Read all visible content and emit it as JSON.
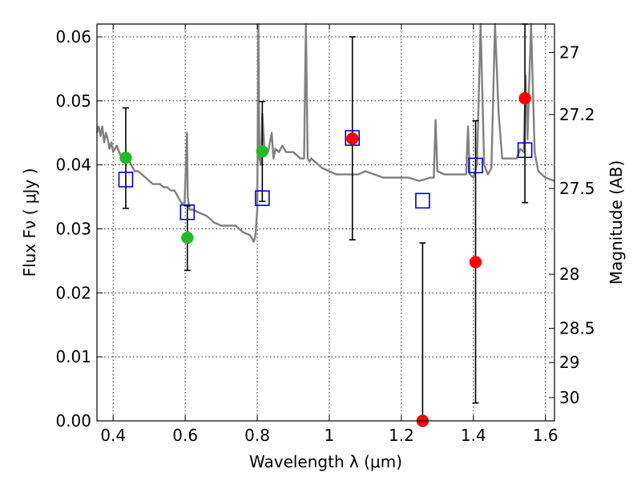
{
  "chart_data": {
    "type": "scatter",
    "title": "",
    "xlabel": "Wavelength  λ (μm)",
    "ylabel": "Flux  Fν  ( μJy )",
    "ylabel_right": "Magnitude (AB)",
    "xlim": [
      0.355,
      1.625
    ],
    "ylim": [
      0.0,
      0.062
    ],
    "grid": true,
    "x_ticks": [
      {
        "value": 0.4,
        "label": "0.4"
      },
      {
        "value": 0.6,
        "label": "0.6"
      },
      {
        "value": 0.8,
        "label": "0.8"
      },
      {
        "value": 1.0,
        "label": "1"
      },
      {
        "value": 1.2,
        "label": "1.2"
      },
      {
        "value": 1.4,
        "label": "1.4"
      },
      {
        "value": 1.6,
        "label": "1.6"
      }
    ],
    "y_ticks": [
      {
        "value": 0.0,
        "label": "0.00"
      },
      {
        "value": 0.01,
        "label": "0.01"
      },
      {
        "value": 0.02,
        "label": "0.02"
      },
      {
        "value": 0.03,
        "label": "0.03"
      },
      {
        "value": 0.04,
        "label": "0.04"
      },
      {
        "value": 0.05,
        "label": "0.05"
      },
      {
        "value": 0.06,
        "label": "0.06"
      }
    ],
    "right_ticks": [
      {
        "label": "27",
        "mag": 27.0
      },
      {
        "label": "27.2",
        "mag": 27.2
      },
      {
        "label": "27.5",
        "mag": 27.5
      },
      {
        "label": "28",
        "mag": 28.0
      },
      {
        "label": "28.5",
        "mag": 28.5
      },
      {
        "label": "29",
        "mag": 29.0
      },
      {
        "label": "30",
        "mag": 30.0
      }
    ],
    "template_spectrum": {
      "color": "#808080",
      "x": [
        0.355,
        0.36,
        0.365,
        0.37,
        0.375,
        0.38,
        0.385,
        0.39,
        0.395,
        0.4,
        0.41,
        0.42,
        0.43,
        0.44,
        0.45,
        0.46,
        0.47,
        0.48,
        0.49,
        0.5,
        0.51,
        0.52,
        0.53,
        0.54,
        0.55,
        0.56,
        0.57,
        0.58,
        0.59,
        0.598,
        0.602,
        0.605,
        0.607,
        0.612,
        0.62,
        0.64,
        0.66,
        0.68,
        0.7,
        0.72,
        0.74,
        0.76,
        0.78,
        0.79,
        0.795,
        0.8,
        0.803,
        0.806,
        0.81,
        0.814,
        0.82,
        0.83,
        0.84,
        0.845,
        0.85,
        0.86,
        0.87,
        0.88,
        0.9,
        0.92,
        0.93,
        0.935,
        0.94,
        0.945,
        0.95,
        0.98,
        1.0,
        1.02,
        1.05,
        1.08,
        1.1,
        1.15,
        1.2,
        1.22,
        1.25,
        1.28,
        1.29,
        1.295,
        1.3,
        1.32,
        1.35,
        1.37,
        1.38,
        1.385,
        1.39,
        1.4,
        1.41,
        1.42,
        1.43,
        1.44,
        1.45,
        1.46,
        1.47,
        1.48,
        1.5,
        1.52,
        1.53,
        1.54,
        1.545,
        1.55,
        1.56,
        1.57,
        1.58,
        1.6,
        1.625
      ],
      "y": [
        0.045,
        0.046,
        0.0445,
        0.046,
        0.0435,
        0.045,
        0.044,
        0.0425,
        0.0435,
        0.042,
        0.043,
        0.0415,
        0.0415,
        0.0415,
        0.04,
        0.039,
        0.039,
        0.0385,
        0.038,
        0.0375,
        0.037,
        0.037,
        0.037,
        0.0365,
        0.0365,
        0.036,
        0.036,
        0.035,
        0.034,
        0.034,
        0.04,
        0.045,
        0.035,
        0.033,
        0.033,
        0.0325,
        0.032,
        0.031,
        0.0305,
        0.0305,
        0.0305,
        0.0295,
        0.029,
        0.028,
        0.029,
        0.033,
        0.062,
        0.041,
        0.04,
        0.048,
        0.042,
        0.042,
        0.045,
        0.041,
        0.0425,
        0.042,
        0.043,
        0.042,
        0.042,
        0.041,
        0.041,
        0.062,
        0.041,
        0.0405,
        0.041,
        0.0395,
        0.039,
        0.0385,
        0.0385,
        0.0385,
        0.039,
        0.038,
        0.038,
        0.038,
        0.0375,
        0.038,
        0.038,
        0.047,
        0.039,
        0.0385,
        0.0385,
        0.0385,
        0.0385,
        0.046,
        0.0385,
        0.038,
        0.04,
        0.062,
        0.04,
        0.0385,
        0.0395,
        0.062,
        0.048,
        0.041,
        0.041,
        0.041,
        0.0425,
        0.042,
        0.054,
        0.044,
        0.062,
        0.042,
        0.039,
        0.038,
        0.0375
      ]
    },
    "series": [
      {
        "name": "",
        "kind": "model_photometry",
        "marker": "open-square",
        "color": "#0000cc",
        "points": [
          {
            "x": 0.435,
            "y": 0.0377
          },
          {
            "x": 0.606,
            "y": 0.0326
          },
          {
            "x": 0.814,
            "y": 0.0348
          },
          {
            "x": 1.064,
            "y": 0.0442
          },
          {
            "x": 1.259,
            "y": 0.0344
          },
          {
            "x": 1.406,
            "y": 0.0399
          },
          {
            "x": 1.543,
            "y": 0.0423
          }
        ]
      },
      {
        "name": "",
        "kind": "observed_optical",
        "marker": "filled-circle",
        "color": "#22bb22",
        "points": [
          {
            "x": 0.435,
            "y": 0.0411,
            "err_low": 0.0332,
            "err_high": 0.0489
          },
          {
            "x": 0.606,
            "y": 0.0286,
            "err_low": 0.0235,
            "err_high": 0.0336
          },
          {
            "x": 0.814,
            "y": 0.0421,
            "err_low": 0.0343,
            "err_high": 0.0499
          }
        ]
      },
      {
        "name": "",
        "kind": "observed_nir",
        "marker": "filled-circle",
        "color": "#ff0000",
        "points": [
          {
            "x": 1.064,
            "y": 0.0441,
            "err_low": 0.0283,
            "err_high": 0.06
          },
          {
            "x": 1.259,
            "y": 0.0,
            "err_low": 0.0,
            "err_high": 0.0278
          },
          {
            "x": 1.406,
            "y": 0.0248,
            "err_low": 0.0028,
            "err_high": 0.0469
          },
          {
            "x": 1.543,
            "y": 0.0504,
            "err_low": 0.0341,
            "err_high": 0.062
          }
        ]
      }
    ]
  }
}
